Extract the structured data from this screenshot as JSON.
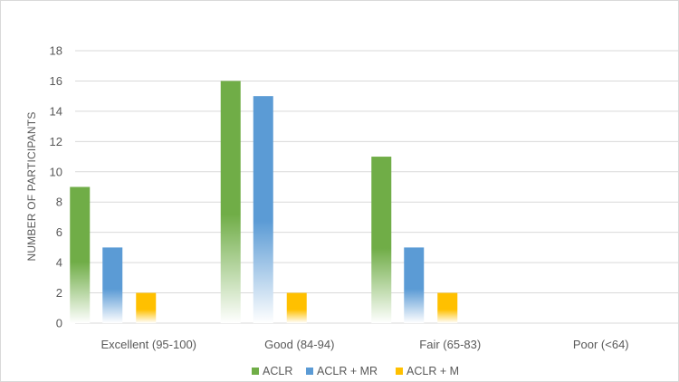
{
  "chart_data": {
    "type": "bar",
    "title": "",
    "xlabel": "",
    "ylabel": "NUMBER OF PARTICIPANTS",
    "ylim": [
      0,
      18
    ],
    "yticks": [
      0,
      2,
      4,
      6,
      8,
      10,
      12,
      14,
      16,
      18
    ],
    "grid": true,
    "legend_position": "bottom",
    "categories": [
      "Excellent (95-100)",
      "Good (84-94)",
      "Fair (65-83)",
      "Poor (<64)"
    ],
    "series": [
      {
        "name": "ACLR",
        "color": "#70ad47",
        "values": [
          9,
          16,
          11,
          0
        ]
      },
      {
        "name": "ACLR + MR",
        "color": "#5b9bd5",
        "values": [
          5,
          15,
          5,
          0
        ]
      },
      {
        "name": "ACLR + M",
        "color": "#ffc000",
        "values": [
          2,
          2,
          2,
          0
        ]
      }
    ]
  }
}
